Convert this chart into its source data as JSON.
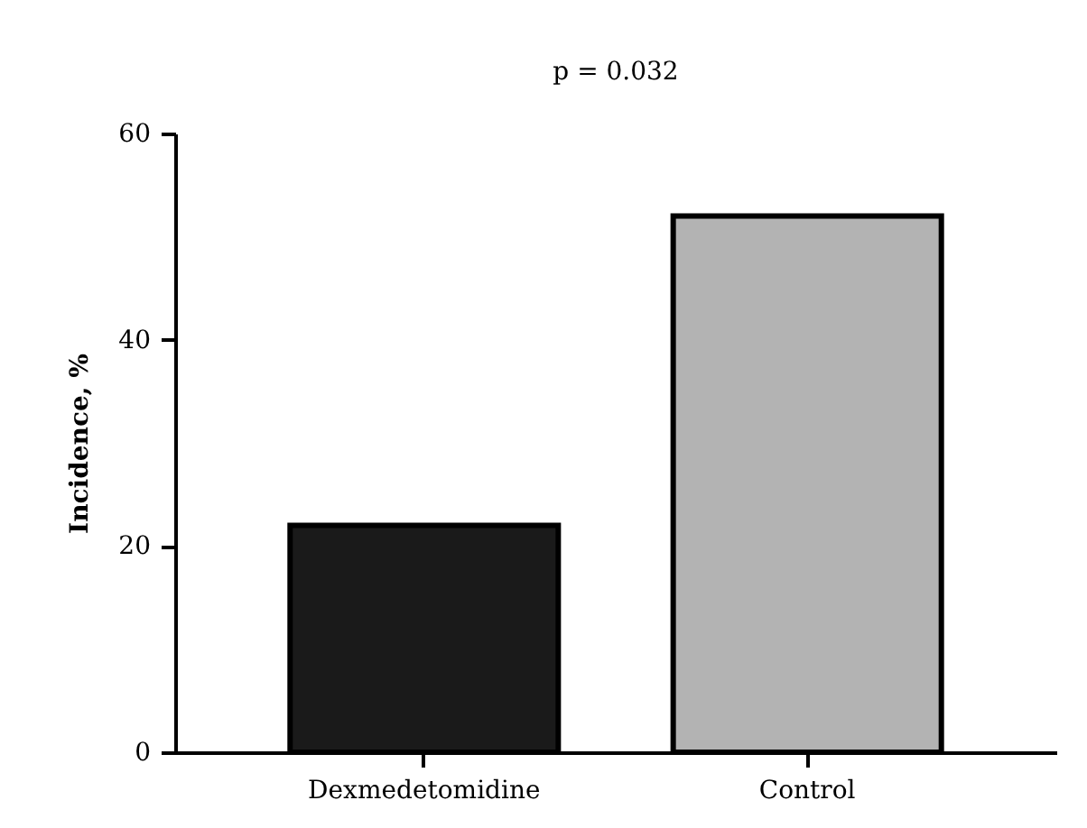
{
  "chart_data": {
    "type": "bar",
    "title": "p = 0.032",
    "ylabel": "Incidence, %",
    "categories": [
      "Dexmedetomidine",
      "Control"
    ],
    "values": [
      22,
      52
    ],
    "colors": [
      "#1a1a1a",
      "#b3b3b3"
    ],
    "ylim": [
      0,
      60
    ],
    "yticks": [
      0,
      20,
      40,
      60
    ],
    "grid": false,
    "legend": false
  }
}
